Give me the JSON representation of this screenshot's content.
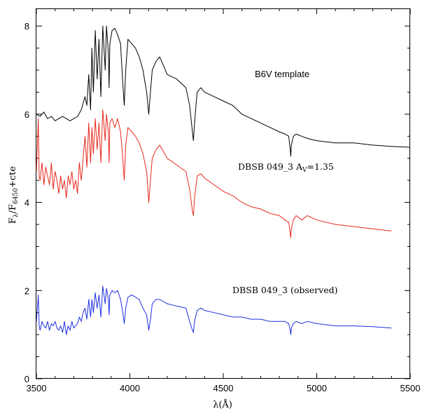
{
  "chart_data": {
    "type": "line",
    "xlabel": "λ(Å)",
    "ylabel": {
      "main": "F",
      "sub1": "λ",
      "mid": "/F",
      "sub2": "6450",
      "tail": "+cte"
    },
    "xlim": [
      3500,
      5500
    ],
    "ylim": [
      0,
      8.4
    ],
    "x_ticks": [
      "3500",
      "4000",
      "4500",
      "5000",
      "5500"
    ],
    "y_ticks": [
      "0",
      "2",
      "4",
      "6",
      "8"
    ],
    "grid": false,
    "annotations": {
      "template": "B6V template",
      "reddened_prefix": "DBSB 049_3  A",
      "reddened_sub": "V",
      "reddened_suffix": "=1.35",
      "observed": "DBSB 049_3  (observed)"
    },
    "series": [
      {
        "color": "#000000",
        "x": [
          3500,
          3520,
          3540,
          3560,
          3580,
          3600,
          3620,
          3640,
          3660,
          3680,
          3700,
          3720,
          3740,
          3760,
          3770,
          3780,
          3790,
          3797,
          3805,
          3815,
          3825,
          3835,
          3845,
          3855,
          3868,
          3875,
          3885,
          3889,
          3893,
          3905,
          3920,
          3935,
          3950,
          3962,
          3970,
          3978,
          3990,
          4010,
          4030,
          4050,
          4070,
          4090,
          4101,
          4112,
          4120,
          4140,
          4160,
          4180,
          4200,
          4250,
          4300,
          4320,
          4335,
          4340,
          4346,
          4360,
          4380,
          4400,
          4450,
          4500,
          4550,
          4600,
          4650,
          4700,
          4750,
          4800,
          4830,
          4850,
          4858,
          4861,
          4864,
          4875,
          4890,
          4920,
          4950,
          5000,
          5100,
          5200,
          5300,
          5400,
          5500
        ],
        "y": [
          6.0,
          5.95,
          6.05,
          5.9,
          5.95,
          5.85,
          5.9,
          5.95,
          5.9,
          5.85,
          5.9,
          5.95,
          6.1,
          6.4,
          6.2,
          6.9,
          6.1,
          7.5,
          6.5,
          7.9,
          6.8,
          7.7,
          6.4,
          8.0,
          7.0,
          8.0,
          7.4,
          6.6,
          7.6,
          7.9,
          7.95,
          7.8,
          7.6,
          6.7,
          6.2,
          7.0,
          7.7,
          7.6,
          7.5,
          7.3,
          7.0,
          6.5,
          6.0,
          6.6,
          7.0,
          7.2,
          7.3,
          7.1,
          6.9,
          6.8,
          6.6,
          6.2,
          5.6,
          5.4,
          5.8,
          6.5,
          6.6,
          6.5,
          6.4,
          6.3,
          6.2,
          6.0,
          5.9,
          5.8,
          5.7,
          5.6,
          5.55,
          5.5,
          5.2,
          5.05,
          5.3,
          5.5,
          5.55,
          5.5,
          5.45,
          5.4,
          5.35,
          5.35,
          5.3,
          5.27,
          5.25
        ]
      },
      {
        "color": "#e8281c",
        "x": [
          3500,
          3510,
          3515,
          3520,
          3530,
          3540,
          3550,
          3560,
          3570,
          3580,
          3590,
          3600,
          3610,
          3620,
          3630,
          3640,
          3650,
          3660,
          3670,
          3680,
          3690,
          3700,
          3710,
          3720,
          3730,
          3740,
          3750,
          3760,
          3770,
          3780,
          3790,
          3797,
          3805,
          3815,
          3825,
          3835,
          3845,
          3855,
          3868,
          3875,
          3885,
          3889,
          3893,
          3905,
          3920,
          3935,
          3950,
          3962,
          3970,
          3978,
          3990,
          4010,
          4030,
          4050,
          4070,
          4090,
          4101,
          4112,
          4120,
          4140,
          4160,
          4180,
          4200,
          4250,
          4300,
          4320,
          4335,
          4340,
          4346,
          4360,
          4380,
          4400,
          4450,
          4500,
          4550,
          4600,
          4650,
          4700,
          4750,
          4800,
          4830,
          4850,
          4858,
          4861,
          4864,
          4875,
          4890,
          4920,
          4950,
          5000,
          5100,
          5200,
          5300,
          5400
        ],
        "y": [
          4.7,
          5.9,
          4.6,
          4.5,
          4.9,
          4.4,
          4.8,
          4.6,
          4.4,
          4.9,
          4.3,
          4.7,
          4.5,
          4.2,
          4.6,
          4.3,
          4.5,
          4.1,
          4.6,
          4.4,
          4.7,
          4.3,
          4.5,
          4.2,
          4.9,
          4.5,
          5.0,
          5.5,
          4.8,
          5.8,
          4.9,
          5.7,
          5.1,
          5.9,
          5.2,
          5.8,
          4.9,
          6.1,
          5.4,
          6.0,
          5.6,
          4.9,
          5.8,
          5.9,
          5.7,
          5.9,
          5.6,
          5.0,
          4.5,
          5.3,
          5.7,
          5.6,
          5.5,
          5.35,
          5.1,
          4.7,
          4.0,
          4.6,
          5.0,
          5.2,
          5.3,
          5.15,
          5.0,
          4.85,
          4.7,
          4.3,
          3.8,
          3.7,
          4.1,
          4.6,
          4.65,
          4.55,
          4.4,
          4.25,
          4.15,
          4.0,
          3.9,
          3.85,
          3.75,
          3.7,
          3.6,
          3.55,
          3.3,
          3.2,
          3.4,
          3.6,
          3.7,
          3.6,
          3.7,
          3.6,
          3.5,
          3.45,
          3.4,
          3.35
        ]
      },
      {
        "color": "#1f2fe0",
        "x": [
          3500,
          3510,
          3515,
          3520,
          3530,
          3540,
          3550,
          3560,
          3570,
          3580,
          3590,
          3600,
          3610,
          3620,
          3630,
          3640,
          3650,
          3660,
          3670,
          3680,
          3690,
          3700,
          3710,
          3720,
          3730,
          3740,
          3750,
          3760,
          3770,
          3780,
          3790,
          3797,
          3805,
          3815,
          3825,
          3835,
          3845,
          3855,
          3868,
          3875,
          3885,
          3889,
          3893,
          3905,
          3920,
          3935,
          3950,
          3962,
          3970,
          3978,
          3990,
          4010,
          4030,
          4050,
          4070,
          4090,
          4101,
          4112,
          4120,
          4140,
          4160,
          4180,
          4200,
          4250,
          4300,
          4320,
          4335,
          4340,
          4346,
          4360,
          4380,
          4400,
          4450,
          4500,
          4550,
          4600,
          4650,
          4700,
          4750,
          4800,
          4830,
          4850,
          4858,
          4861,
          4864,
          4875,
          4890,
          4920,
          4950,
          5000,
          5100,
          5200,
          5300,
          5400
        ],
        "y": [
          1.3,
          1.9,
          1.2,
          1.1,
          1.3,
          1.2,
          1.15,
          1.3,
          1.1,
          1.25,
          1.2,
          1.3,
          1.15,
          1.1,
          1.2,
          1.05,
          1.3,
          1.0,
          1.2,
          1.1,
          1.3,
          1.15,
          1.2,
          1.25,
          1.4,
          1.3,
          1.5,
          1.6,
          1.35,
          1.8,
          1.4,
          1.8,
          1.5,
          1.95,
          1.6,
          1.9,
          1.4,
          2.1,
          1.7,
          2.05,
          1.8,
          1.45,
          1.9,
          2.0,
          1.95,
          2.0,
          1.8,
          1.5,
          1.25,
          1.6,
          1.85,
          1.9,
          1.85,
          1.8,
          1.6,
          1.45,
          1.1,
          1.4,
          1.7,
          1.8,
          1.8,
          1.75,
          1.7,
          1.65,
          1.6,
          1.3,
          1.1,
          1.05,
          1.3,
          1.55,
          1.6,
          1.55,
          1.5,
          1.45,
          1.4,
          1.4,
          1.35,
          1.35,
          1.3,
          1.3,
          1.3,
          1.25,
          1.1,
          1.0,
          1.15,
          1.25,
          1.3,
          1.25,
          1.3,
          1.25,
          1.2,
          1.2,
          1.18,
          1.15
        ]
      }
    ]
  }
}
